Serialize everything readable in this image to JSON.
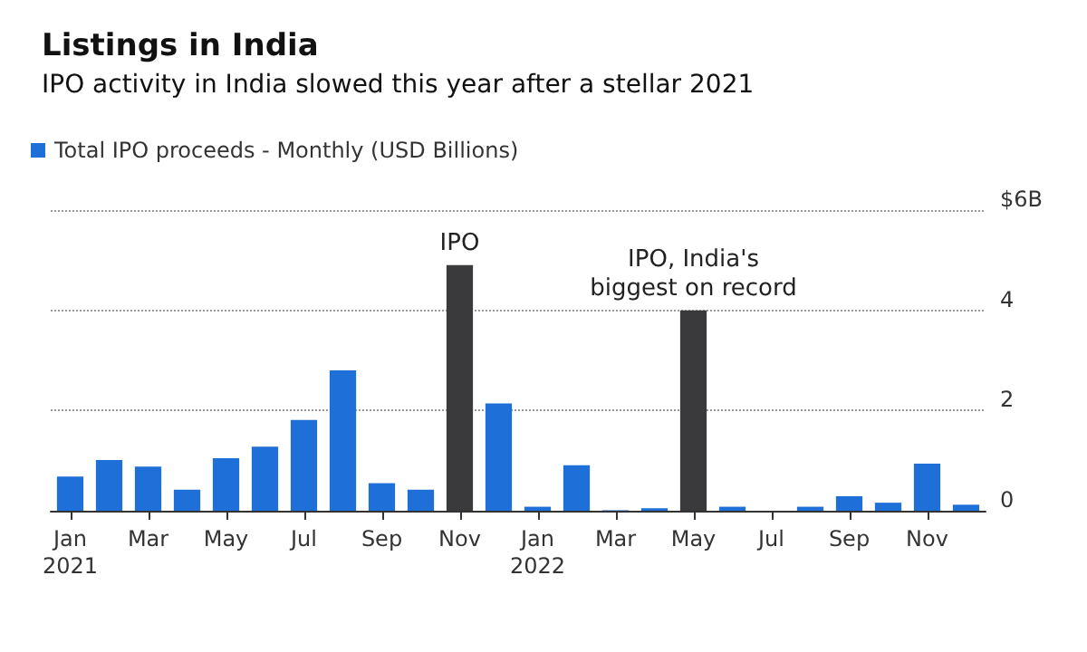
{
  "chart_data": {
    "type": "bar",
    "title": "Listings in India",
    "subtitle": "IPO activity in India slowed this year after a stellar 2021",
    "categories": [
      "Jan\n2021",
      null,
      "Mar",
      null,
      "May",
      null,
      "Jul",
      null,
      "Sep",
      null,
      "Nov",
      null,
      "Jan\n2022",
      null,
      "Mar",
      null,
      "May",
      null,
      "Jul",
      null,
      "Sep",
      null,
      "Nov",
      null
    ],
    "series": [
      {
        "name": "Total IPO proceeds - Monthly (USD Billions)",
        "color": "#1f6fd8",
        "values": [
          0.68,
          1.01,
          0.88,
          0.42,
          1.05,
          1.28,
          1.81,
          2.8,
          0.55,
          0.42,
          4.9,
          2.14,
          0.08,
          0.91,
          0.01,
          0.05,
          4.0,
          0.08,
          0,
          0.08,
          0.29,
          0.16,
          0.94,
          0.12
        ],
        "colors": [
          "#1f6fd8",
          "#1f6fd8",
          "#1f6fd8",
          "#1f6fd8",
          "#1f6fd8",
          "#1f6fd8",
          "#1f6fd8",
          "#1f6fd8",
          "#1f6fd8",
          "#1f6fd8",
          "#3a3a3c",
          "#1f6fd8",
          "#1f6fd8",
          "#1f6fd8",
          "#1f6fd8",
          "#1f6fd8",
          "#3a3a3c",
          "#1f6fd8",
          "#1f6fd8",
          "#1f6fd8",
          "#1f6fd8",
          "#1f6fd8",
          "#1f6fd8",
          "#1f6fd8"
        ]
      }
    ],
    "ylim": [
      0,
      6
    ],
    "yticks": [
      0,
      2,
      4,
      {
        "value": 6,
        "label": "$6B"
      }
    ],
    "grid": "y",
    "legend": "top left",
    "annotations": [
      "IPO",
      "IPO, India's\nbiggest on record"
    ]
  }
}
